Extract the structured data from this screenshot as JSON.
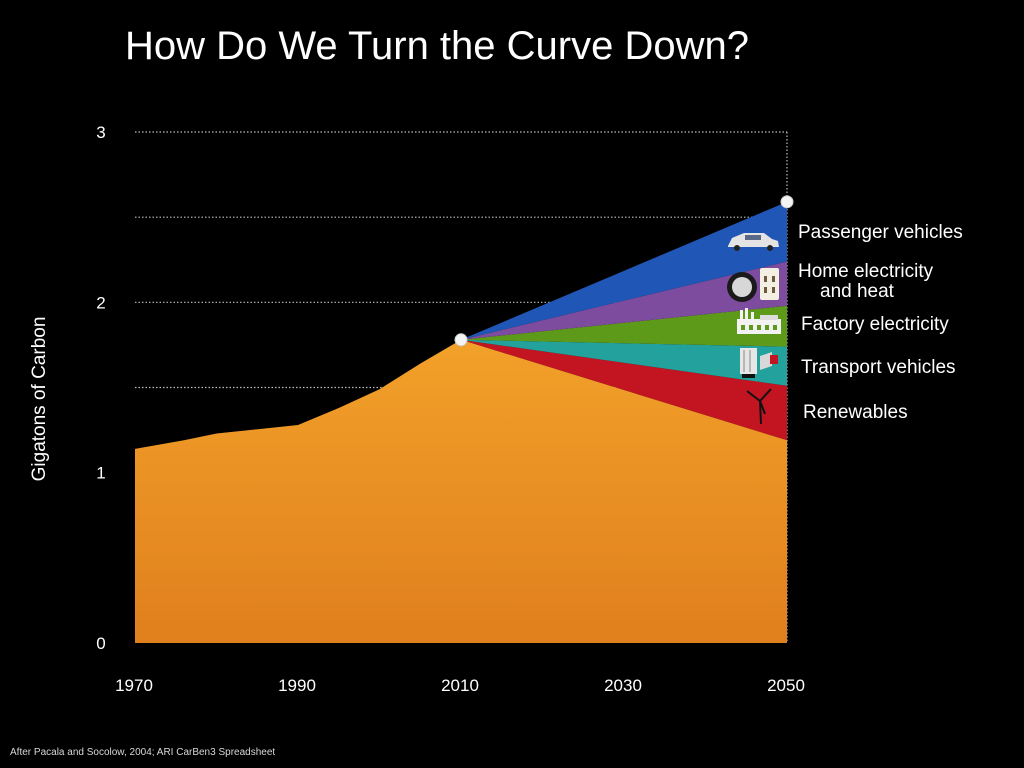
{
  "slide": {
    "title": "How Do We Turn the Curve Down?",
    "source_note": "After Pacala and Socolow, 2004; ARI CarBen3 Spreadsheet"
  },
  "chart_data": {
    "type": "area",
    "title": "How Do We Turn the Curve Down?",
    "xlabel": "",
    "ylabel": "Gigatons of Carbon",
    "xlim": [
      1970,
      2050
    ],
    "ylim": [
      0,
      3
    ],
    "x_ticks": [
      "1970",
      "1990",
      "2010",
      "2030",
      "2050"
    ],
    "y_ticks": [
      "0",
      "1",
      "2",
      "3"
    ],
    "gridlines_y": [
      1.5,
      2.0,
      2.5,
      3.0
    ],
    "grid": true,
    "legend_position": "right",
    "baseline": {
      "color_top": "#f2a12a",
      "color_bottom": "#e07f1d",
      "points": [
        {
          "x": 1970,
          "y": 1.14
        },
        {
          "x": 1976,
          "y": 1.19
        },
        {
          "x": 1980,
          "y": 1.23
        },
        {
          "x": 1984,
          "y": 1.25
        },
        {
          "x": 1990,
          "y": 1.28
        },
        {
          "x": 1995,
          "y": 1.38
        },
        {
          "x": 2000,
          "y": 1.49
        },
        {
          "x": 2005,
          "y": 1.64
        },
        {
          "x": 2010,
          "y": 1.78
        },
        {
          "x": 2050,
          "y": 1.19
        }
      ]
    },
    "markers": [
      {
        "x": 2010,
        "y": 1.78
      },
      {
        "x": 2050,
        "y": 2.59
      }
    ],
    "series": [
      {
        "name": "Renewables",
        "color": "#c31521",
        "icon": "wind-turbine-icon",
        "start": {
          "x": 2010,
          "y": 1.78
        },
        "end_low": 1.19,
        "end_high": 1.51
      },
      {
        "name": "Transport vehicles",
        "color": "#23a19d",
        "icon": "truck-icon",
        "start": {
          "x": 2010,
          "y": 1.78
        },
        "end_low": 1.51,
        "end_high": 1.74
      },
      {
        "name": "Factory electricity",
        "color": "#5e9a1a",
        "icon": "factory-icon",
        "start": {
          "x": 2010,
          "y": 1.78
        },
        "end_low": 1.74,
        "end_high": 1.98
      },
      {
        "name": "Home electricity and heat",
        "color": "#7d4c9f",
        "icon": "home-appliance-icon",
        "start": {
          "x": 2010,
          "y": 1.78
        },
        "end_low": 1.98,
        "end_high": 2.24
      },
      {
        "name": "Passenger vehicles",
        "color": "#2057b6",
        "icon": "car-icon",
        "start": {
          "x": 2010,
          "y": 1.78
        },
        "end_low": 2.24,
        "end_high": 2.59
      }
    ],
    "legend": [
      {
        "line1": "Passenger vehicles",
        "line2": ""
      },
      {
        "line1": "Home electricity",
        "line2": "and heat"
      },
      {
        "line1": "Factory electricity",
        "line2": ""
      },
      {
        "line1": "Transport vehicles",
        "line2": ""
      },
      {
        "line1": "Renewables",
        "line2": ""
      }
    ]
  }
}
